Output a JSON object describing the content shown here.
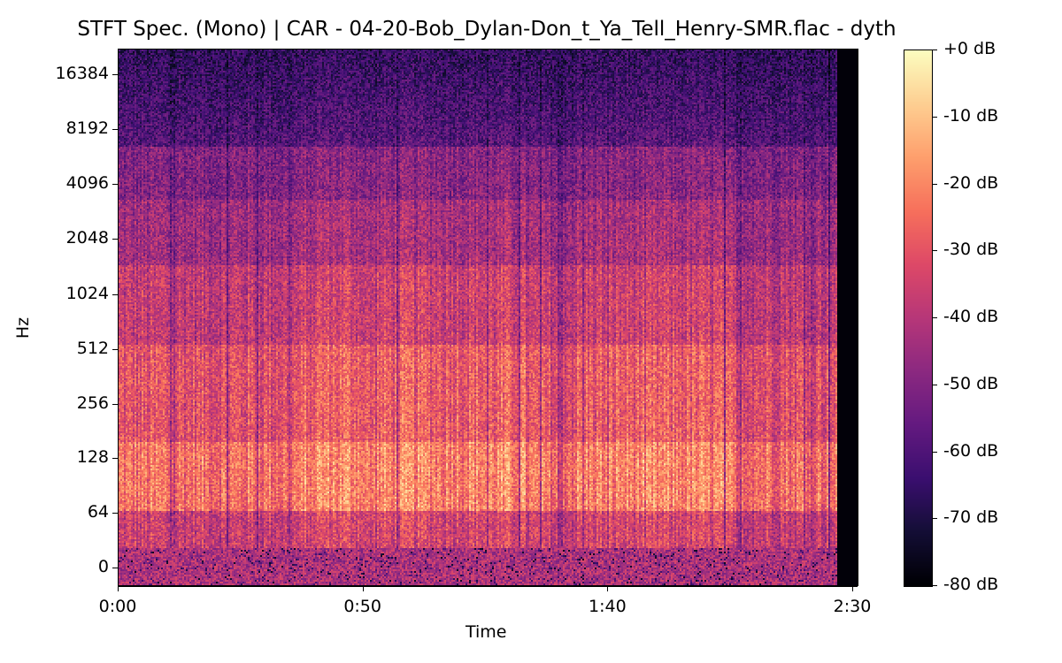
{
  "chart_data": {
    "type": "heatmap",
    "title": "STFT Spec. (Mono) | CAR - 04-20-Bob_Dylan-Don_t_Ya_Tell_Henry-SMR.flac - dyth",
    "xlabel": "Time",
    "ylabel": "Hz",
    "x_ticks": [
      "0:00",
      "0:50",
      "1:40",
      "2:30"
    ],
    "y_ticks": [
      "0",
      "64",
      "128",
      "256",
      "512",
      "1024",
      "2048",
      "4096",
      "8192",
      "16384"
    ],
    "colorbar": {
      "label_ticks": [
        "+0 dB",
        "-10 dB",
        "-20 dB",
        "-30 dB",
        "-40 dB",
        "-50 dB",
        "-60 dB",
        "-70 dB",
        "-80 dB"
      ],
      "range_db": [
        -80,
        0
      ],
      "colormap": "magma"
    },
    "x_range_seconds": [
      0,
      150
    ],
    "signal_end_seconds": 148
  }
}
